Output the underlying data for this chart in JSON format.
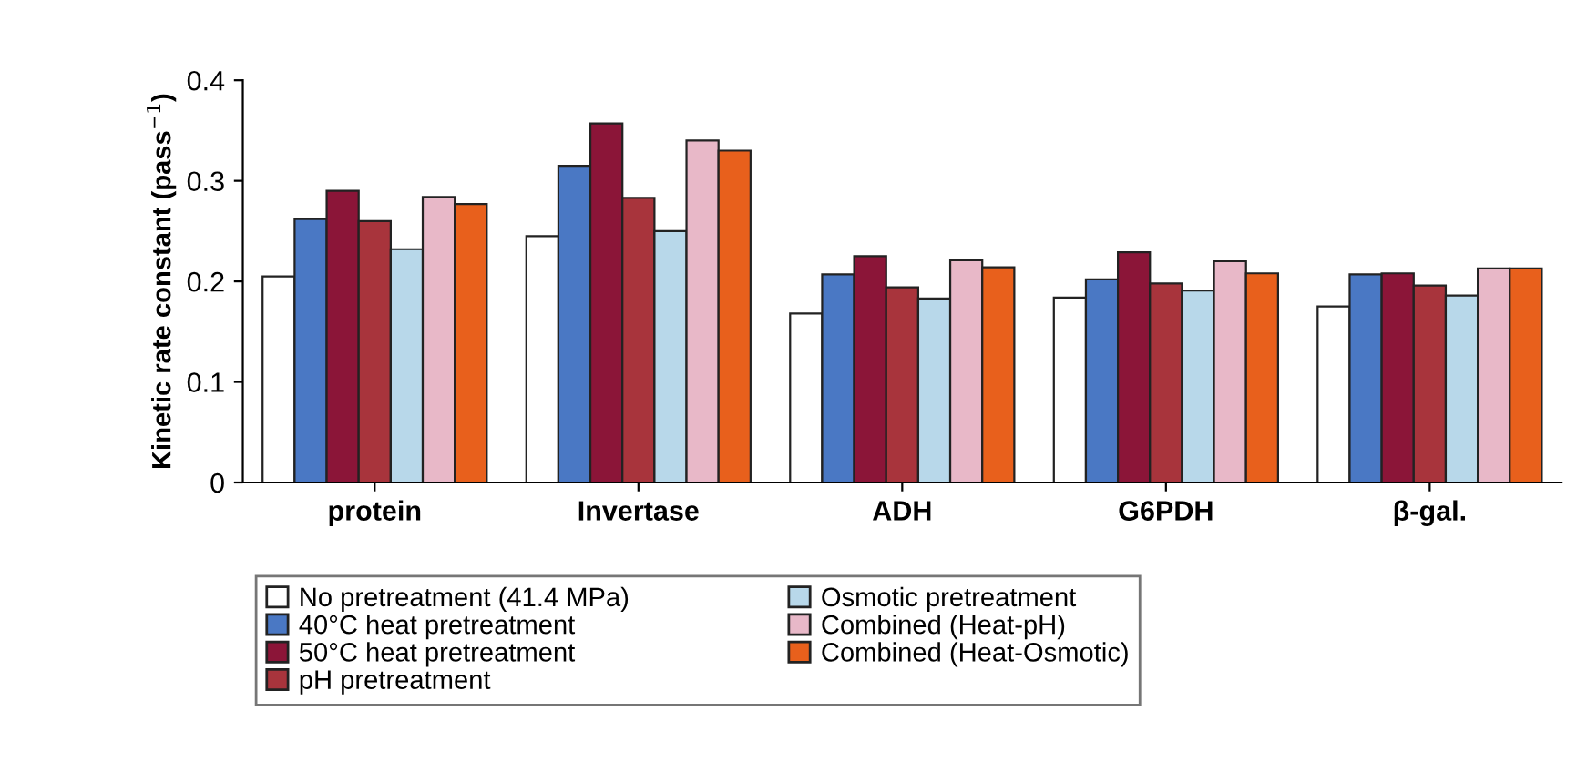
{
  "chart_data": {
    "type": "bar",
    "ylabel": "Kinetic rate constant (pass$^{−1}$)",
    "categories": [
      "protein",
      "Invertase",
      "ADH",
      "G6PDH",
      "β-gal."
    ],
    "series": [
      {
        "name": "No pretreatment (41.4 MPa)",
        "color": "#ffffff",
        "values": [
          0.205,
          0.245,
          0.168,
          0.184,
          0.175
        ]
      },
      {
        "name": "40°C heat pretreatment",
        "color": "#4a78c4",
        "values": [
          0.262,
          0.315,
          0.207,
          0.202,
          0.207
        ]
      },
      {
        "name": "50°C heat pretreatment",
        "color": "#8b1538",
        "values": [
          0.29,
          0.357,
          0.225,
          0.229,
          0.208
        ]
      },
      {
        "name": "pH pretreatment",
        "color": "#a8343c",
        "values": [
          0.26,
          0.283,
          0.194,
          0.198,
          0.196
        ]
      },
      {
        "name": "Osmotic pretreatment",
        "color": "#b8d8ea",
        "values": [
          0.232,
          0.25,
          0.183,
          0.191,
          0.186
        ]
      },
      {
        "name": "Combined (Heat-pH)",
        "color": "#e8b8c8",
        "values": [
          0.284,
          0.34,
          0.221,
          0.22,
          0.213
        ]
      },
      {
        "name": "Combined (Heat-Osmotic)",
        "color": "#e8601c",
        "values": [
          0.277,
          0.33,
          0.214,
          0.208,
          0.213
        ]
      }
    ],
    "ylim": [
      0,
      0.4
    ],
    "yticks": [
      0,
      0.1,
      0.2,
      0.3,
      0.4
    ],
    "grid": false,
    "legend": "bottom"
  }
}
